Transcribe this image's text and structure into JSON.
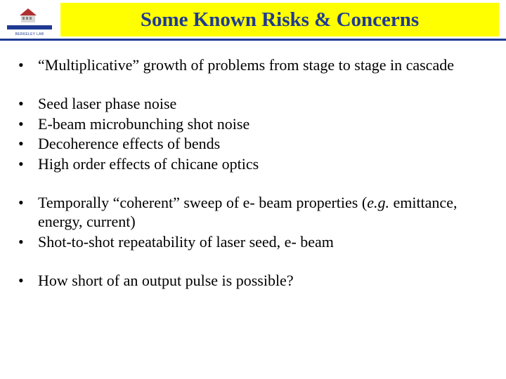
{
  "header": {
    "title": "Some Known Risks & Concerns",
    "logo_label": "BERKELEY LAB",
    "title_bg": "#ffff00",
    "title_color": "#1f3a93",
    "underline_color": "#1f3a93"
  },
  "body": {
    "font_size_pt": 22,
    "text_color": "#000000",
    "bullet_char": "•",
    "groups": [
      {
        "items": [
          {
            "text": "“Multiplicative” growth of problems from stage to stage in cascade"
          }
        ]
      },
      {
        "items": [
          {
            "text": "Seed laser phase noise"
          },
          {
            "text": "E-beam microbunching shot noise"
          },
          {
            "text": "Decoherence effects of bends"
          },
          {
            "text": "High order effects of chicane optics"
          }
        ]
      },
      {
        "items": [
          {
            "text_html": "Temporally “coherent” sweep of e- beam properties (<span class=\"italic\">e.g.</span> emittance, energy, current)"
          },
          {
            "text": "Shot-to-shot repeatability of laser seed, e- beam"
          }
        ]
      },
      {
        "items": [
          {
            "text": "How short of an output pulse is possible?"
          }
        ]
      }
    ]
  },
  "logo": {
    "roof_color": "#b03030",
    "building_color": "#d8d8d8",
    "bar_color": "#1f3a93"
  }
}
